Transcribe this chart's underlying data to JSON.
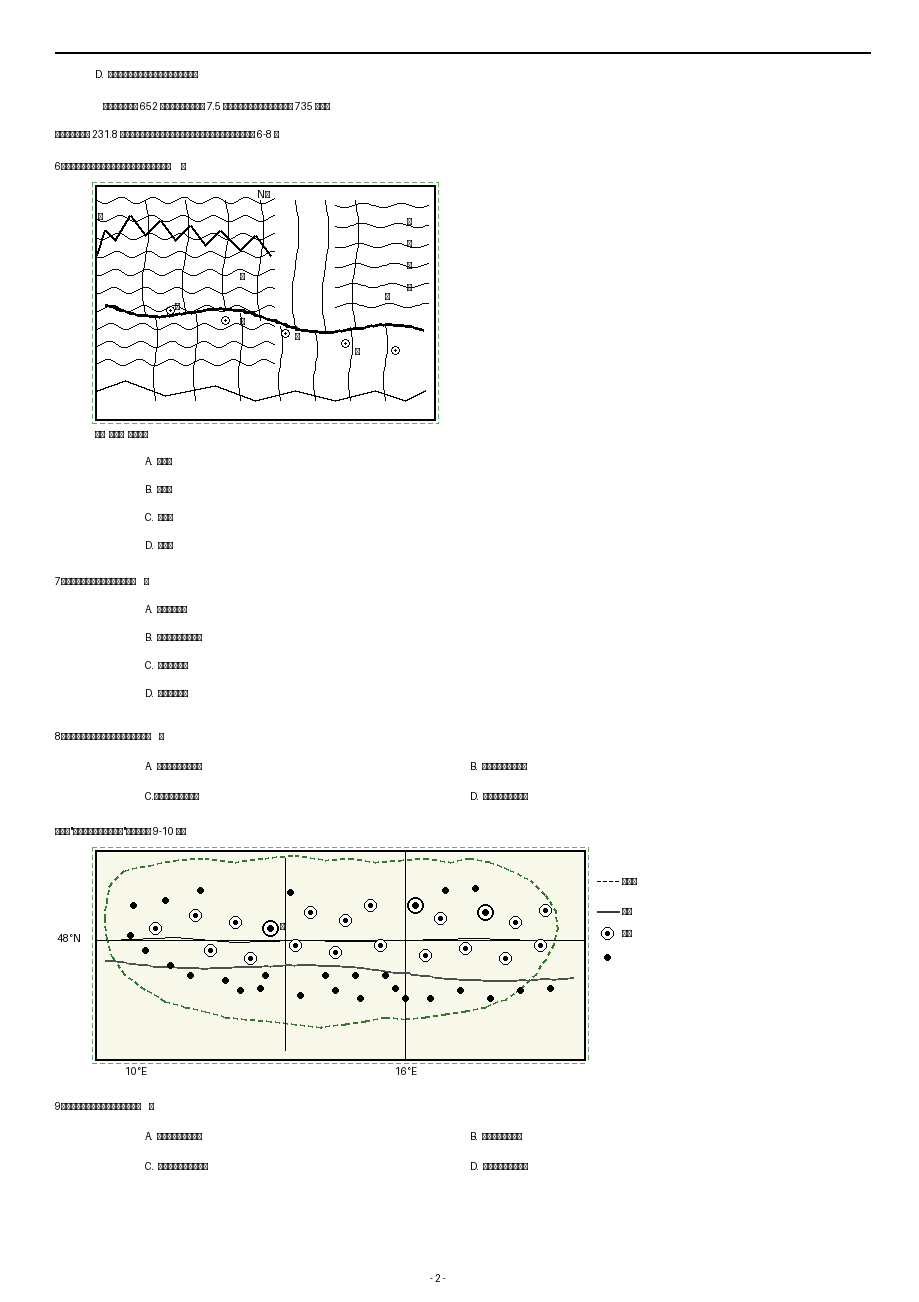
{
  "bg_color": "#ffffff",
  "page_width": 9.2,
  "page_height": 13.02,
  "line_d": "D.  河流流向特点导致甲河全年会有两次凌汛",
  "para1": "    意大利波河全长 652 千米，流域面积约为 7.5 万平方千米，河口多年平均流量 735 立方米",
  "para2": "秒，年均径流量 231.8 亿立方米。下图为波河干流和主要支流分布示意图。据此完成 6-8 题",
  "q6": "6、甲、乙、丙、丁河段中，最可能是地上河的是（     ）",
  "q6a": "A.  甲河段",
  "q6b": "B.  乙河段",
  "q6c": "C.  丙河段",
  "q6d": "D.  丁河段",
  "q7": "7、波河干流地上河的形成时期是（    ）",
  "q7a": "A.  人类历史以前",
  "q7b": "B.  采集、狩猎文明时期",
  "q7c": "C.  农业文明时期",
  "q7d": "D.  工业文明时期",
  "q8": "8、波河下游平原人口稀疏的主要原因是（    ）",
  "q8a": "A.  夏季高温，降水过多",
  "q8b": "B.  地势低平，沼泽广布",
  "q8c": "C.河道纵横，交通不便",
  "q8d": "D.  土壤贫瘠，农业落后",
  "austria_intro": "下图是\"奥地利城市分布示意图\"。据此回答 9-10 是题",
  "q9": "9、关于该国城市的叙述，正确的是（    ）",
  "q9a": "A.  河流沿岸形成城市群",
  "q9b": "B.  以中、小城市为主",
  "q9c": "C.  城市①的服务范围最大",
  "q9d": "D.  多数城市占地面积大",
  "page_num": "- 2 -",
  "map1_legend": "图例  ○城市  ～～河流",
  "legend2_border": "国界线",
  "legend2_river": "河流",
  "legend2_city": "城市"
}
